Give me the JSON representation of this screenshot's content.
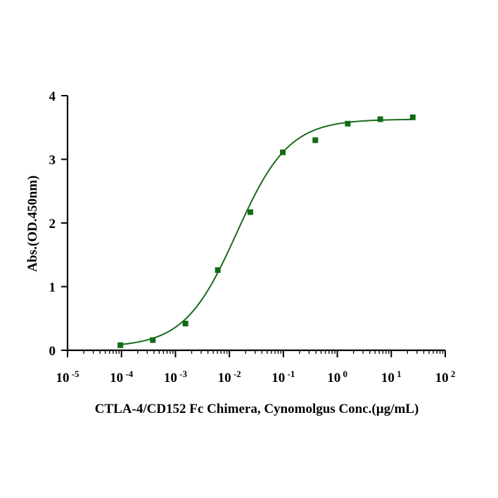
{
  "chart_data": {
    "type": "scatter",
    "xscale": "log",
    "xlabel": "CTLA-4/CD152 Fc Chimera, Cynomolgus Conc.(µg/mL)",
    "ylabel": "Abs.(OD.450nm)",
    "xlim": [
      1e-05,
      100
    ],
    "ylim": [
      0,
      4
    ],
    "x_ticks": [
      {
        "base": "10",
        "exp": "-5",
        "value": 1e-05
      },
      {
        "base": "10",
        "exp": "-4",
        "value": 0.0001
      },
      {
        "base": "10",
        "exp": "-3",
        "value": 0.001
      },
      {
        "base": "10",
        "exp": "-2",
        "value": 0.01
      },
      {
        "base": "10",
        "exp": "-1",
        "value": 0.1
      },
      {
        "base": "10",
        "exp": "0",
        "value": 1
      },
      {
        "base": "10",
        "exp": "1",
        "value": 10
      },
      {
        "base": "10",
        "exp": "2",
        "value": 100
      }
    ],
    "y_ticks": [
      "0",
      "1",
      "2",
      "3",
      "4"
    ],
    "series": [
      {
        "color": "#126b12",
        "x": [
          9.54e-05,
          0.000381,
          0.00153,
          0.0061,
          0.0244,
          0.0977,
          0.391,
          1.5625,
          6.25,
          25
        ],
        "y": [
          0.08,
          0.16,
          0.42,
          1.26,
          2.17,
          3.11,
          3.3,
          3.56,
          3.63,
          3.66
        ]
      }
    ],
    "fit_curve": {
      "model": "4PL",
      "bottom": 0.05,
      "top": 3.63,
      "ec50": 0.0136,
      "hill": 0.9,
      "color": "#1a6b1a"
    },
    "grid": false,
    "legend": "none"
  }
}
